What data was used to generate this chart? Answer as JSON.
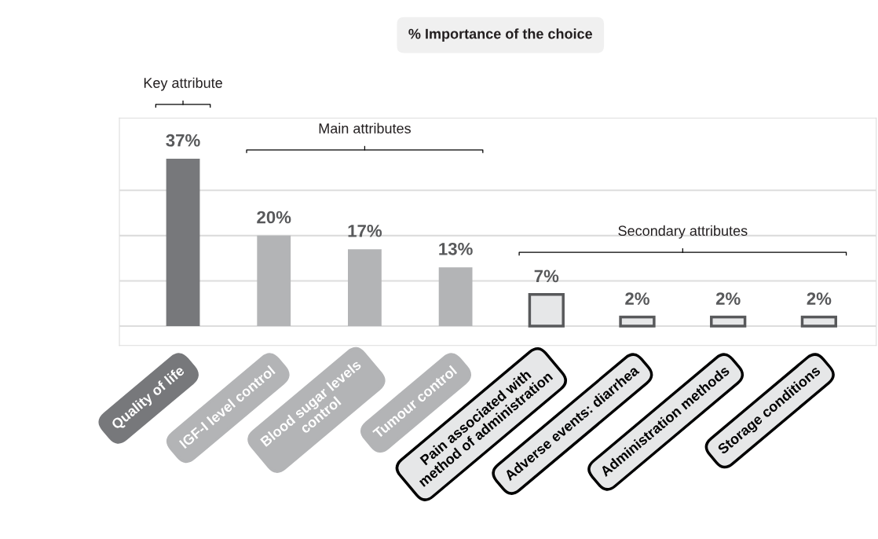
{
  "chart_data": {
    "type": "bar",
    "title": "% Importance of the choice",
    "categories": [
      "Quality of life",
      "IGF-I level control",
      "Blood sugar levels\ncontrol",
      "Tumour control",
      "Pain associated with\nmethod of administration",
      "Adverse events: diarrhea",
      "Administration methods",
      "Storage conditions"
    ],
    "values": [
      37,
      20,
      17,
      13,
      7,
      2,
      2,
      2
    ],
    "value_labels": [
      "37%",
      "20%",
      "17%",
      "13%",
      "7%",
      "2%",
      "2%",
      "2%"
    ],
    "colors": [
      "#77787b",
      "#b3b4b6",
      "#b3b4b6",
      "#b3b4b6",
      "#e6e7e8",
      "#e6e7e8",
      "#e6e7e8",
      "#e6e7e8"
    ],
    "ylim": [
      -4.3,
      46
    ],
    "yticks": [
      {
        "value": 0,
        "label": null
      },
      {
        "value": 10,
        "label": null
      },
      {
        "value": 20,
        "label": null
      },
      {
        "value": 30,
        "label": null
      }
    ],
    "grid": "y",
    "tick_labels": "x",
    "annotations": [
      "Key attribute",
      "Main attributes",
      "Secondary attributes"
    ]
  }
}
